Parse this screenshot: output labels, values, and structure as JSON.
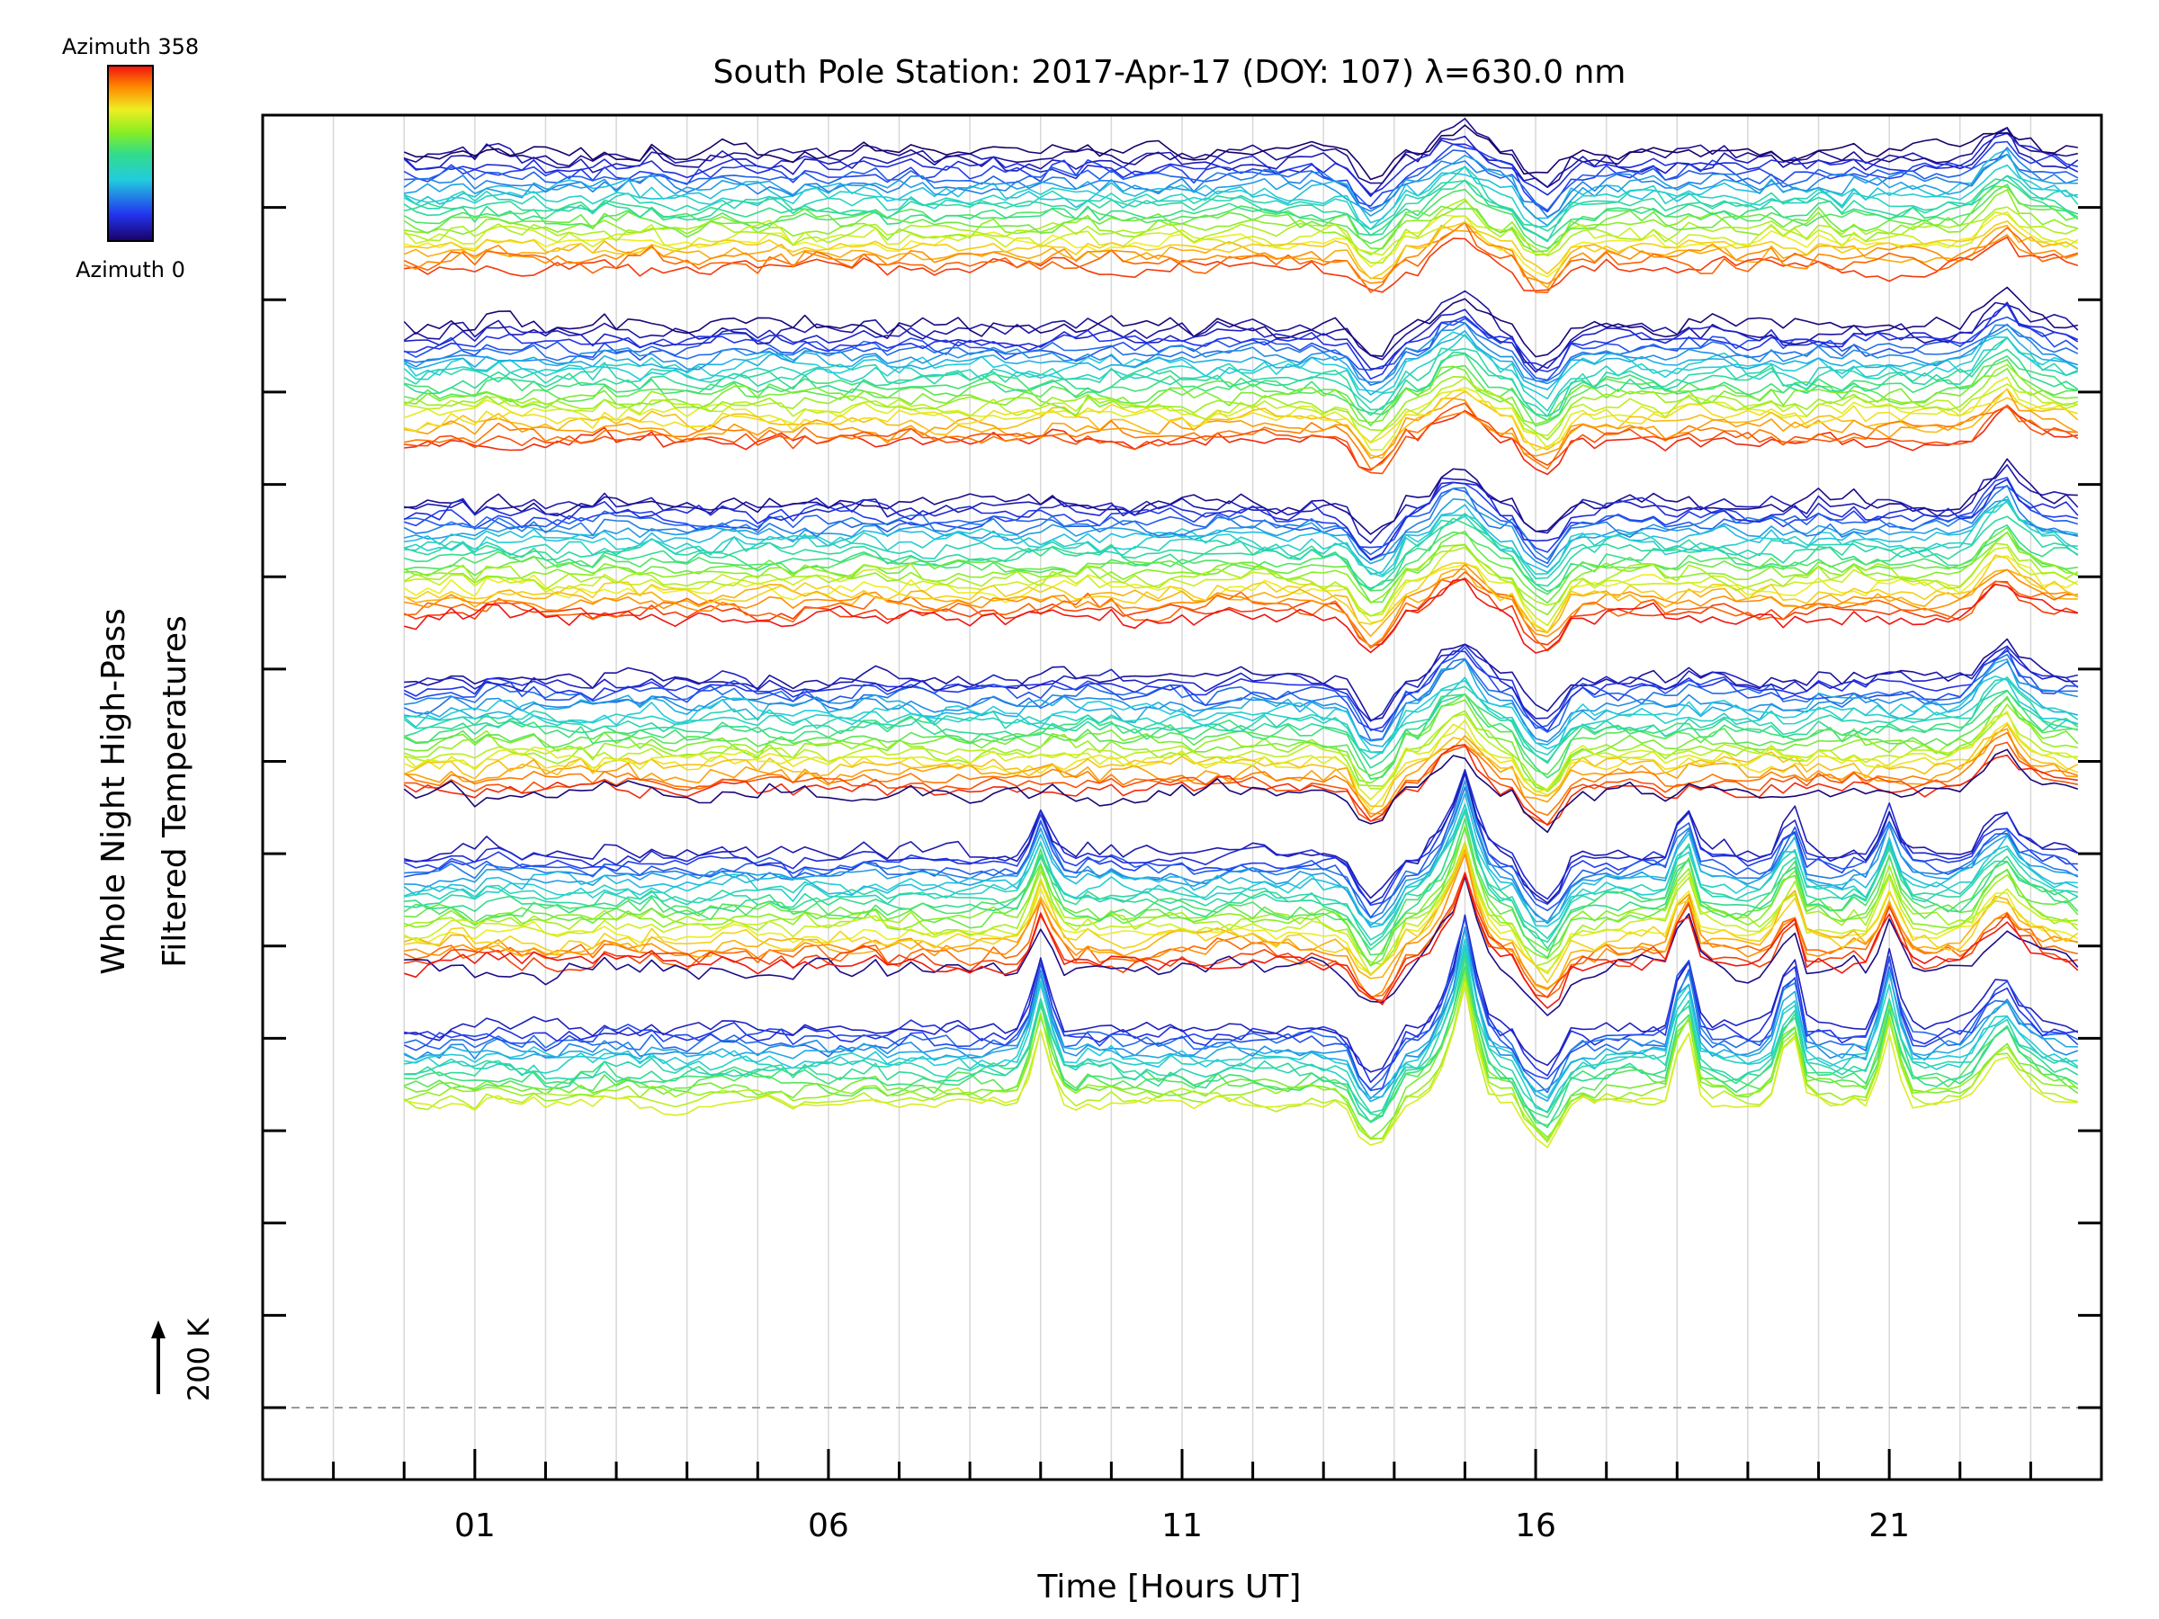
{
  "chart_data": {
    "type": "line",
    "title": "South Pole Station: 2017-Apr-17 (DOY: 107) λ=630.0 nm",
    "xlabel": "Time [Hours UT]",
    "ylabel": [
      "Whole Night High-Pass",
      "Filtered Temperatures"
    ],
    "x_range_hours": [
      -2,
      24
    ],
    "x_ticks": [
      {
        "value": 1,
        "label": "01"
      },
      {
        "value": 6,
        "label": "06"
      },
      {
        "value": 11,
        "label": "11"
      },
      {
        "value": 16,
        "label": "16"
      },
      {
        "value": 21,
        "label": "21"
      }
    ],
    "data_start_hour": 0,
    "data_end_hour": 23.7,
    "sample_interval_minutes": 10,
    "scale_bar": {
      "label": "200 K",
      "value_K": 200
    },
    "colorbar": {
      "top_label": "Azimuth 358",
      "bottom_label": "Azimuth 0",
      "min": 0,
      "max": 358,
      "colormap": "rainbow"
    },
    "stack_groups": [
      {
        "name": "group-1",
        "lines_per_group": 24
      },
      {
        "name": "group-2",
        "lines_per_group": 24
      },
      {
        "name": "group-3",
        "lines_per_group": 24
      },
      {
        "name": "group-4",
        "lines_per_group": 24
      },
      {
        "name": "group-5",
        "lines_per_group": 24
      },
      {
        "name": "group-6",
        "lines_per_group": 16
      }
    ],
    "common_features_hours": [
      {
        "hour": 13.7,
        "kind": "dip"
      },
      {
        "hour": 14.9,
        "kind": "peak"
      },
      {
        "hour": 16.1,
        "kind": "dip"
      },
      {
        "hour": 22.6,
        "kind": "peak"
      }
    ],
    "lower_group_spikes_hours": [
      9.0,
      15.0,
      18.1,
      19.6,
      21.0
    ]
  }
}
